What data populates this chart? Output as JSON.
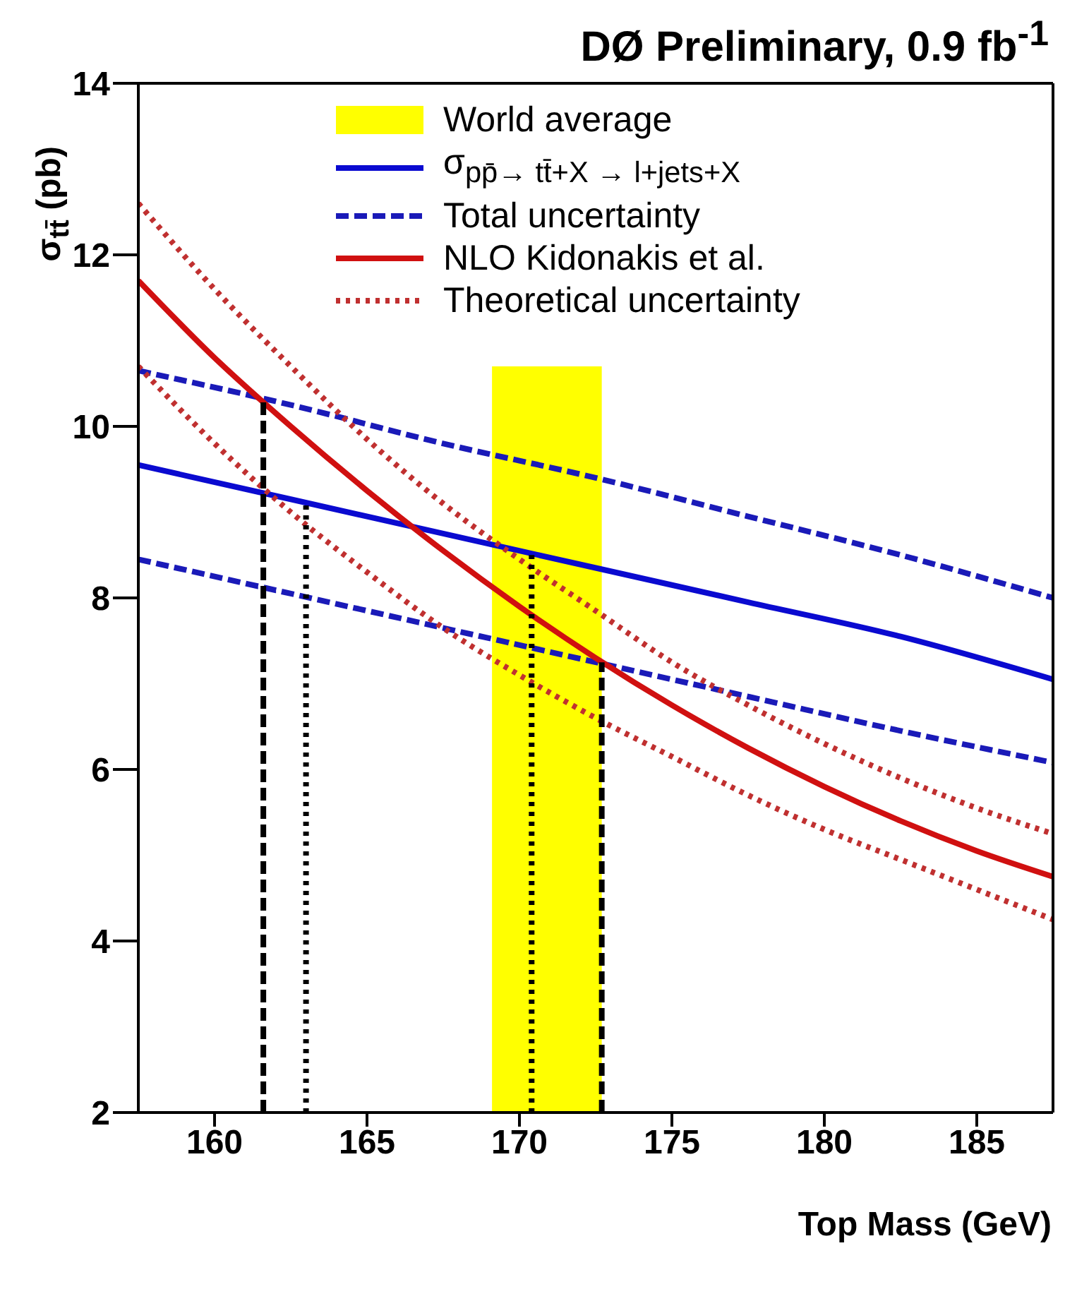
{
  "chart_data": {
    "type": "line",
    "title": "DØ Preliminary, 0.9 fb$^{-1}$",
    "xlabel": "Top Mass (GeV)",
    "ylabel": "σ$_{tt̄}$ (pb)",
    "xlim": [
      157.5,
      187.5
    ],
    "xticks": [
      160,
      165,
      170,
      175,
      180,
      185
    ],
    "ylim": [
      2,
      14
    ],
    "yticks": [
      2,
      4,
      6,
      8,
      10,
      12,
      14
    ],
    "grid": false,
    "legend": "top",
    "marker": "none",
    "series": [
      {
        "type": "area",
        "name": "World average",
        "color": "#ffff00",
        "x": [
          169.1,
          172.7
        ],
        "values": [
          10.7,
          10.7
        ]
      },
      {
        "name": "σ$_{pp̄→ tt̄+X → l+jets+X}$",
        "color": "#0a0ad0",
        "line_style": "solid",
        "x": [
          157.5,
          162.5,
          167.5,
          172.5,
          177.5,
          182.5,
          187.5
        ],
        "values": [
          9.55,
          9.15,
          8.75,
          8.35,
          7.95,
          7.55,
          7.05
        ]
      },
      {
        "name": "Total uncertainty",
        "color": "#1a1ab8",
        "line_style": "dashed",
        "x": [
          157.5,
          162.5,
          167.5,
          172.5,
          177.5,
          182.5,
          187.5
        ],
        "values": [
          10.65,
          10.25,
          9.8,
          9.4,
          8.95,
          8.5,
          8.0
        ]
      },
      {
        "color": "#1a1ab8",
        "line_style": "dashed",
        "x": [
          157.5,
          162.5,
          167.5,
          172.5,
          177.5,
          182.5,
          187.5
        ],
        "values": [
          8.45,
          8.05,
          7.65,
          7.25,
          6.85,
          6.45,
          6.08
        ]
      },
      {
        "name": "NLO Kidonakis et al.",
        "color": "#d01010",
        "line_style": "solid",
        "x": [
          157.5,
          160,
          162.5,
          165,
          167.5,
          170,
          172.5,
          175,
          177.5,
          180,
          182.5,
          185,
          187.5
        ],
        "values": [
          11.7,
          10.8,
          10.0,
          9.25,
          8.55,
          7.9,
          7.3,
          6.75,
          6.25,
          5.8,
          5.4,
          5.05,
          4.75
        ]
      },
      {
        "name": "Theoretical uncertainty",
        "color": "#c03030",
        "line_style": "dotted",
        "x": [
          157.5,
          160,
          162.5,
          165,
          167.5,
          170,
          172.5,
          175,
          177.5,
          180,
          182.5,
          185,
          187.5
        ],
        "values": [
          12.6,
          11.6,
          10.7,
          9.85,
          9.1,
          8.45,
          7.85,
          7.25,
          6.75,
          6.3,
          5.9,
          5.55,
          5.25
        ]
      },
      {
        "color": "#c03030",
        "line_style": "dotted",
        "x": [
          157.5,
          160,
          162.5,
          165,
          167.5,
          170,
          172.5,
          175,
          177.5,
          180,
          182.5,
          185,
          187.5
        ],
        "values": [
          10.7,
          9.8,
          9.0,
          8.3,
          7.65,
          7.1,
          6.6,
          6.15,
          5.7,
          5.3,
          4.95,
          4.6,
          4.25
        ]
      },
      {
        "color": "#000000",
        "line_style": "dashed",
        "x": [
          161.6,
          161.6
        ],
        "values": [
          2,
          10.3
        ]
      },
      {
        "color": "#000000",
        "line_style": "dotted",
        "x": [
          163.0,
          163.0
        ],
        "values": [
          2,
          9.1
        ]
      },
      {
        "color": "#000000",
        "line_style": "dotted",
        "x": [
          170.4,
          170.4
        ],
        "values": [
          2,
          8.5
        ]
      },
      {
        "color": "#000000",
        "line_style": "dashed",
        "x": [
          172.7,
          172.7
        ],
        "values": [
          2,
          7.25
        ]
      }
    ]
  }
}
